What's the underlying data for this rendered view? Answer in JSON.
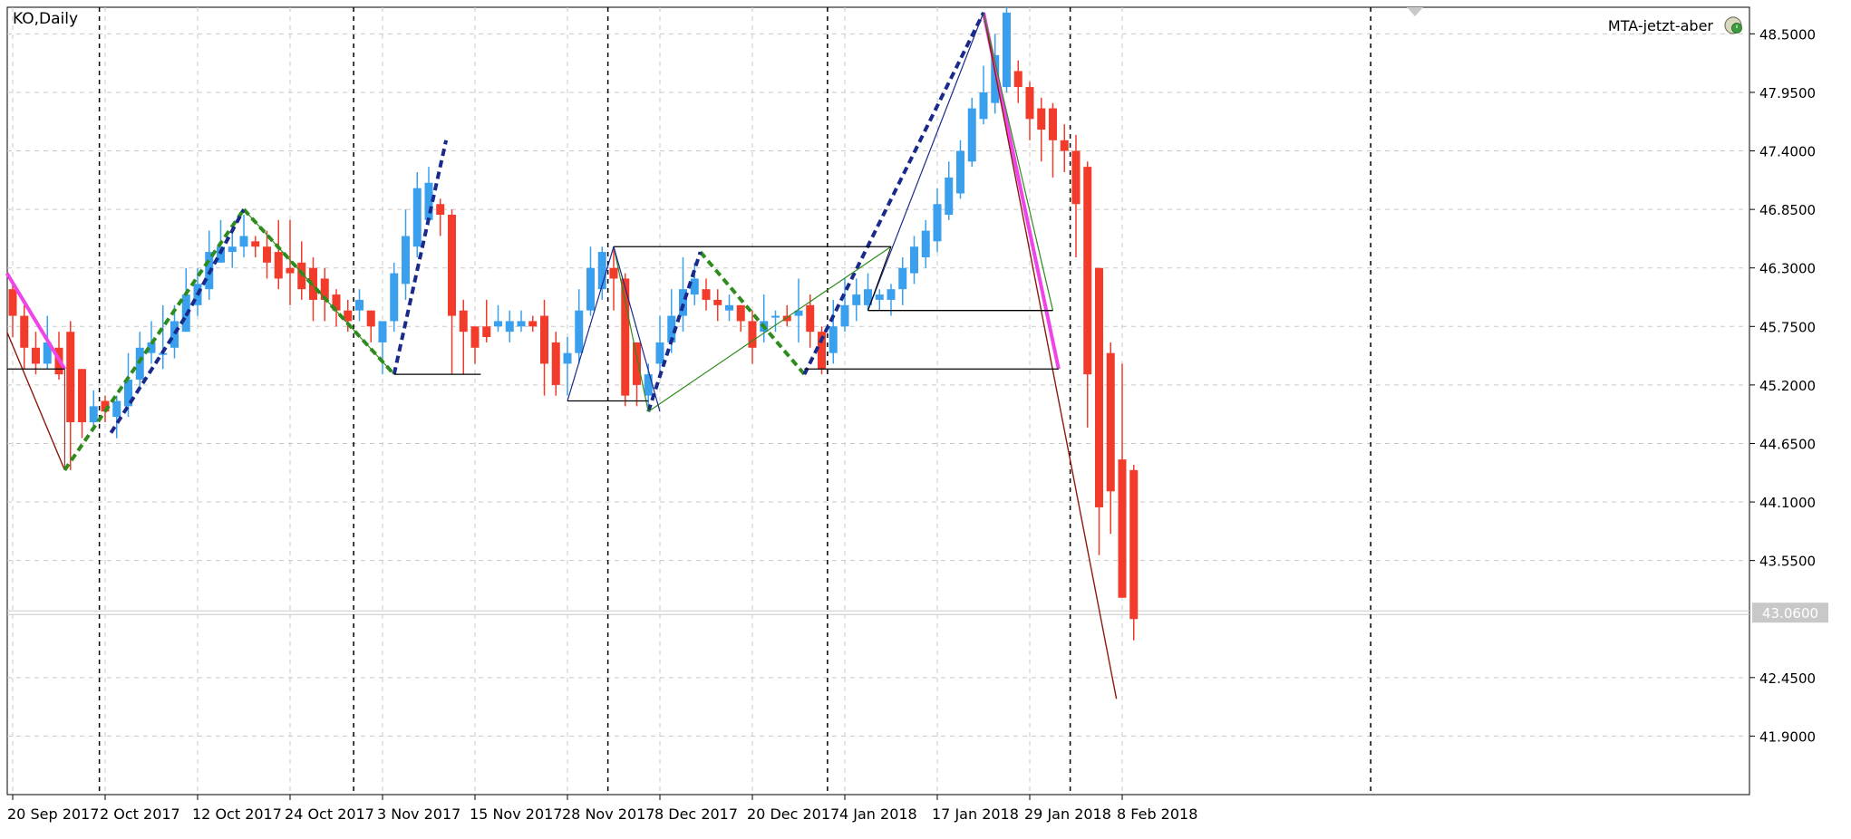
{
  "chart_title": "KO,Daily",
  "indicator_label": "MTA-jetzt-aber",
  "current_price": "43.0600",
  "colors": {
    "bull": "#3aa0ee",
    "bear": "#f23b2a",
    "grid": "#c8c8c8",
    "separator": "#000000",
    "zigzag_up": "#1a2a8a",
    "zigzag_green": "#2e8b1e",
    "pattern_line": "#1a2a8a",
    "projection": "#8b1a10",
    "magenta": "#ee44e8",
    "price_tag": "#c8c8c8"
  },
  "chart_data": {
    "type": "candlestick",
    "symbol": "KO",
    "timeframe": "Daily",
    "ylim": [
      41.35,
      48.75
    ],
    "y_ticks": [
      "48.5000",
      "47.9500",
      "47.4000",
      "46.8500",
      "46.3000",
      "45.7500",
      "45.2000",
      "44.6500",
      "44.1000",
      "43.5500",
      "43.0600",
      "42.4500",
      "41.9000"
    ],
    "x_tick_labels": [
      {
        "label": "20 Sep 2017",
        "bar": 0
      },
      {
        "label": "2 Oct 2017",
        "bar": 8
      },
      {
        "label": "12 Oct 2017",
        "bar": 16
      },
      {
        "label": "24 Oct 2017",
        "bar": 24
      },
      {
        "label": "3 Nov 2017",
        "bar": 32
      },
      {
        "label": "15 Nov 2017",
        "bar": 40
      },
      {
        "label": "28 Nov 2017",
        "bar": 48
      },
      {
        "label": "8 Dec 2017",
        "bar": 56
      },
      {
        "label": "20 Dec 2017",
        "bar": 64
      },
      {
        "label": "4 Jan 2018",
        "bar": 72
      },
      {
        "label": "17 Jan 2018",
        "bar": 80
      },
      {
        "label": "29 Jan 2018",
        "bar": 88
      },
      {
        "label": "8 Feb 2018",
        "bar": 96
      }
    ],
    "period_separators_bar": [
      7.5,
      29.5,
      51.5,
      70.5,
      91.5,
      117.5
    ],
    "candles": [
      [
        46.1,
        45.85,
        46.15,
        45.65
      ],
      [
        45.85,
        45.55,
        45.95,
        45.35
      ],
      [
        45.55,
        45.4,
        45.7,
        45.3
      ],
      [
        45.4,
        45.6,
        45.85,
        45.35
      ],
      [
        45.55,
        45.3,
        45.7,
        45.25
      ],
      [
        45.7,
        44.85,
        45.8,
        44.4
      ],
      [
        45.35,
        44.85,
        45.35,
        44.7
      ],
      [
        44.85,
        45.0,
        45.15,
        44.8
      ],
      [
        45.05,
        44.95,
        45.1,
        44.85
      ],
      [
        44.9,
        45.05,
        45.1,
        44.7
      ],
      [
        45.0,
        45.25,
        45.5,
        44.9
      ],
      [
        45.25,
        45.55,
        45.7,
        45.15
      ],
      [
        45.5,
        45.6,
        45.8,
        45.4
      ],
      [
        45.5,
        45.5,
        45.95,
        45.35
      ],
      [
        45.55,
        45.8,
        45.95,
        45.45
      ],
      [
        45.7,
        46.05,
        46.3,
        45.7
      ],
      [
        45.95,
        46.15,
        46.3,
        45.85
      ],
      [
        46.1,
        46.45,
        46.65,
        46.0
      ],
      [
        46.35,
        46.5,
        46.75,
        46.35
      ],
      [
        46.45,
        46.5,
        46.7,
        46.3
      ],
      [
        46.5,
        46.6,
        46.8,
        46.4
      ],
      [
        46.55,
        46.5,
        46.6,
        46.4
      ],
      [
        46.5,
        46.35,
        46.65,
        46.2
      ],
      [
        46.45,
        46.2,
        46.75,
        46.1
      ],
      [
        46.3,
        46.25,
        46.75,
        45.95
      ],
      [
        46.35,
        46.1,
        46.55,
        46.0
      ],
      [
        46.3,
        46.0,
        46.4,
        45.8
      ],
      [
        46.2,
        46.0,
        46.3,
        45.8
      ],
      [
        46.05,
        45.9,
        46.1,
        45.75
      ],
      [
        45.9,
        45.8,
        46.0,
        45.7
      ],
      [
        45.9,
        46.0,
        46.1,
        45.8
      ],
      [
        45.9,
        45.75,
        45.9,
        45.6
      ],
      [
        45.6,
        45.8,
        45.75,
        45.3
      ],
      [
        45.8,
        46.25,
        46.35,
        45.7
      ],
      [
        46.15,
        46.6,
        46.85,
        46.0
      ],
      [
        46.5,
        47.05,
        47.2,
        46.4
      ],
      [
        46.75,
        47.1,
        47.25,
        46.7
      ],
      [
        46.9,
        46.8,
        46.95,
        46.6
      ],
      [
        46.8,
        45.85,
        46.85,
        45.3
      ],
      [
        45.9,
        45.7,
        46.0,
        45.3
      ],
      [
        45.75,
        45.55,
        45.75,
        45.4
      ],
      [
        45.75,
        45.65,
        46.0,
        45.6
      ],
      [
        45.75,
        45.8,
        45.95,
        45.7
      ],
      [
        45.7,
        45.8,
        45.9,
        45.6
      ],
      [
        45.75,
        45.8,
        45.9,
        45.7
      ],
      [
        45.8,
        45.75,
        45.85,
        45.7
      ],
      [
        45.85,
        45.4,
        46.0,
        45.1
      ],
      [
        45.6,
        45.2,
        45.7,
        45.1
      ],
      [
        45.4,
        45.5,
        45.65,
        45.1
      ],
      [
        45.5,
        45.9,
        46.1,
        45.4
      ],
      [
        45.9,
        46.3,
        46.5,
        45.85
      ],
      [
        46.1,
        46.45,
        46.5,
        46.0
      ],
      [
        46.3,
        46.2,
        46.5,
        45.9
      ],
      [
        46.2,
        45.1,
        46.25,
        45.0
      ],
      [
        45.6,
        45.2,
        45.6,
        45.0
      ],
      [
        45.1,
        45.3,
        45.4,
        45.0
      ],
      [
        45.4,
        45.6,
        45.85,
        45.3
      ],
      [
        45.6,
        45.85,
        46.1,
        45.5
      ],
      [
        45.85,
        46.1,
        46.4,
        45.7
      ],
      [
        46.05,
        46.2,
        46.35,
        45.95
      ],
      [
        46.1,
        46.0,
        46.2,
        45.9
      ],
      [
        46.0,
        45.95,
        46.1,
        45.8
      ],
      [
        45.9,
        45.95,
        46.05,
        45.8
      ],
      [
        45.95,
        45.8,
        45.95,
        45.7
      ],
      [
        45.8,
        45.55,
        45.9,
        45.4
      ],
      [
        45.7,
        45.8,
        46.05,
        45.6
      ],
      [
        45.85,
        45.85,
        45.9,
        45.7
      ],
      [
        45.85,
        45.8,
        45.95,
        45.75
      ],
      [
        45.85,
        45.9,
        46.2,
        45.6
      ],
      [
        45.95,
        45.7,
        46.05,
        45.55
      ],
      [
        45.7,
        45.35,
        45.75,
        45.3
      ],
      [
        45.5,
        45.75,
        46.0,
        45.4
      ],
      [
        45.75,
        45.95,
        46.2,
        45.7
      ],
      [
        45.95,
        46.05,
        46.2,
        45.8
      ],
      [
        45.95,
        46.1,
        46.25,
        45.9
      ],
      [
        46.0,
        46.05,
        46.1,
        45.9
      ],
      [
        46.0,
        46.1,
        46.15,
        45.85
      ],
      [
        46.1,
        46.3,
        46.4,
        45.95
      ],
      [
        46.25,
        46.5,
        46.6,
        46.15
      ],
      [
        46.4,
        46.65,
        46.75,
        46.3
      ],
      [
        46.55,
        46.9,
        47.05,
        46.45
      ],
      [
        46.8,
        47.15,
        47.3,
        46.75
      ],
      [
        47.0,
        47.4,
        47.5,
        46.95
      ],
      [
        47.3,
        47.8,
        47.9,
        47.25
      ],
      [
        47.7,
        47.95,
        48.2,
        47.65
      ],
      [
        47.85,
        48.3,
        48.5,
        47.75
      ],
      [
        48.0,
        48.7,
        48.75,
        47.95
      ],
      [
        48.15,
        48.0,
        48.25,
        47.85
      ],
      [
        48.0,
        47.7,
        48.05,
        47.5
      ],
      [
        47.8,
        47.6,
        47.9,
        47.3
      ],
      [
        47.8,
        47.5,
        47.85,
        47.15
      ],
      [
        47.5,
        47.4,
        47.65,
        47.2
      ],
      [
        47.4,
        46.9,
        47.55,
        46.4
      ],
      [
        47.25,
        45.3,
        47.3,
        44.8
      ],
      [
        46.3,
        44.05,
        46.3,
        43.6
      ],
      [
        45.5,
        44.2,
        45.6,
        43.8
      ],
      [
        44.5,
        43.2,
        45.4,
        43.2
      ],
      [
        44.4,
        43.0,
        44.45,
        42.8
      ]
    ]
  }
}
